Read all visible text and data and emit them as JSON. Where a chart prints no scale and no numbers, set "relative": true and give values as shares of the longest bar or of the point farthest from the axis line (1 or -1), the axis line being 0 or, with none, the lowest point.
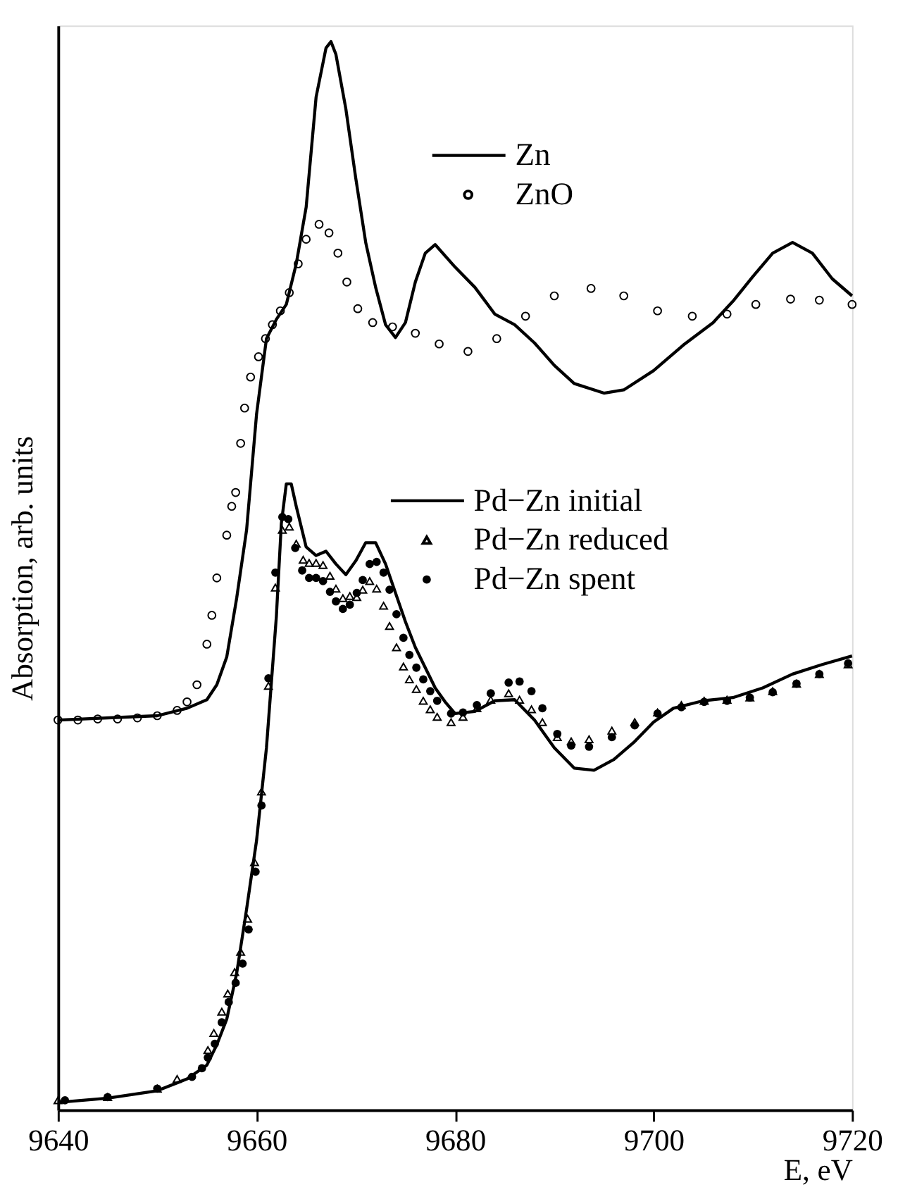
{
  "chart_data": {
    "type": "line",
    "xlabel": "E, eV",
    "ylabel": "Absorption, arb. units",
    "relative": true,
    "xlim": [
      9640,
      9720
    ],
    "xticks": [
      9640,
      9660,
      9680,
      9700,
      9720
    ],
    "grid": false,
    "legend": "top right",
    "series": [
      {
        "name": "Zn",
        "type": "line",
        "color": "#000000",
        "marker": "none",
        "x": [
          9640,
          9650,
          9653,
          9655,
          9656,
          9657,
          9658,
          9659,
          9660,
          9661,
          9662,
          9663,
          9664,
          9665,
          9666,
          9667,
          9667.5,
          9668,
          9669,
          9670,
          9671,
          9672,
          9673,
          9674,
          9675,
          9676,
          9677,
          9678,
          9680,
          9682,
          9684,
          9686,
          9688,
          9690,
          9692,
          9695,
          9697,
          9700,
          9703,
          9706,
          9708,
          9710,
          9712,
          9714,
          9716,
          9718,
          9720
        ],
        "values": [
          0.365,
          0.369,
          0.376,
          0.384,
          0.398,
          0.424,
          0.479,
          0.543,
          0.651,
          0.722,
          0.74,
          0.754,
          0.792,
          0.845,
          0.948,
          0.994,
          1.0,
          0.988,
          0.937,
          0.872,
          0.812,
          0.77,
          0.735,
          0.723,
          0.737,
          0.775,
          0.802,
          0.81,
          0.789,
          0.77,
          0.745,
          0.735,
          0.718,
          0.697,
          0.68,
          0.671,
          0.674,
          0.692,
          0.716,
          0.737,
          0.757,
          0.78,
          0.802,
          0.812,
          0.802,
          0.778,
          0.762
        ]
      },
      {
        "name": "ZnO",
        "type": "scatter",
        "color": "#000000",
        "marker": "circle",
        "x": [
          9640,
          9642,
          9644,
          9646,
          9648,
          9650,
          9652,
          9653,
          9654,
          9655,
          9655.5,
          9656,
          9657,
          9657.5,
          9657.9,
          9658.4,
          9658.8,
          9659.4,
          9660.2,
          9660.9,
          9661.6,
          9662.4,
          9663.3,
          9664.2,
          9665.0,
          9666.3,
          9667.3,
          9668.2,
          9669.1,
          9670.2,
          9671.7,
          9673.7,
          9676.0,
          9678.4,
          9681.3,
          9684.2,
          9687.1,
          9690.0,
          9693.7,
          9697.0,
          9700.4,
          9703.9,
          9707.4,
          9710.3,
          9713.8,
          9716.7,
          9720
        ],
        "values": [
          0.365,
          0.365,
          0.366,
          0.366,
          0.367,
          0.369,
          0.374,
          0.382,
          0.398,
          0.436,
          0.463,
          0.498,
          0.538,
          0.565,
          0.578,
          0.624,
          0.657,
          0.686,
          0.705,
          0.722,
          0.735,
          0.748,
          0.765,
          0.792,
          0.815,
          0.829,
          0.821,
          0.802,
          0.775,
          0.75,
          0.737,
          0.733,
          0.727,
          0.717,
          0.71,
          0.722,
          0.743,
          0.762,
          0.769,
          0.762,
          0.748,
          0.743,
          0.745,
          0.754,
          0.759,
          0.758,
          0.754
        ]
      },
      {
        "name": "Pd−Zn initial",
        "type": "line",
        "color": "#000000",
        "marker": "none",
        "x": [
          9640,
          9645,
          9650,
          9653,
          9655,
          9656,
          9657,
          9658,
          9659,
          9660,
          9661,
          9662,
          9662.5,
          9663,
          9663.5,
          9664,
          9665,
          9666,
          9667,
          9668,
          9669,
          9670,
          9671,
          9672,
          9673,
          9674,
          9675,
          9676,
          9677,
          9678,
          9679,
          9680,
          9682,
          9684,
          9686,
          9688,
          9690,
          9692,
          9694,
          9696,
          9698,
          9700,
          9702,
          9705,
          9708,
          9711,
          9714,
          9717,
          9720
        ],
        "values": [
          0.007,
          0.011,
          0.018,
          0.029,
          0.042,
          0.061,
          0.085,
          0.128,
          0.188,
          0.252,
          0.339,
          0.462,
          0.549,
          0.586,
          0.586,
          0.565,
          0.527,
          0.519,
          0.523,
          0.511,
          0.501,
          0.514,
          0.531,
          0.531,
          0.511,
          0.484,
          0.457,
          0.433,
          0.414,
          0.395,
          0.382,
          0.371,
          0.373,
          0.383,
          0.384,
          0.365,
          0.339,
          0.32,
          0.318,
          0.328,
          0.344,
          0.363,
          0.376,
          0.383,
          0.386,
          0.395,
          0.408,
          0.417,
          0.425
        ]
      },
      {
        "name": "Pd−Zn reduced",
        "type": "scatter",
        "color": "#000000",
        "marker": "triangle",
        "x": [
          9640,
          9645,
          9650,
          9652,
          9655.1,
          9655.7,
          9656.5,
          9657.1,
          9657.8,
          9658.4,
          9659.1,
          9659.8,
          9660.5,
          9661.2,
          9661.9,
          9662.6,
          9663.3,
          9664.0,
          9664.7,
          9665.3,
          9666.0,
          9666.7,
          9667.4,
          9668.0,
          9668.7,
          9669.4,
          9670.1,
          9670.7,
          9671.4,
          9672.1,
          9672.8,
          9673.4,
          9674.1,
          9674.8,
          9675.4,
          9676.1,
          9676.8,
          9677.5,
          9678.2,
          9679.6,
          9680.8,
          9682.2,
          9683.6,
          9685.4,
          9686.5,
          9687.7,
          9688.8,
          9690.3,
          9691.7,
          9693.5,
          9695.8,
          9698.1,
          9700.4,
          9702.8,
          9705.1,
          9707.4,
          9709.7,
          9712.0,
          9714.4,
          9716.7,
          9719.6
        ],
        "values": [
          0.009,
          0.012,
          0.02,
          0.029,
          0.056,
          0.072,
          0.092,
          0.109,
          0.129,
          0.148,
          0.179,
          0.232,
          0.298,
          0.397,
          0.489,
          0.543,
          0.546,
          0.53,
          0.515,
          0.512,
          0.512,
          0.51,
          0.5,
          0.488,
          0.479,
          0.481,
          0.48,
          0.487,
          0.495,
          0.488,
          0.472,
          0.453,
          0.433,
          0.415,
          0.403,
          0.394,
          0.383,
          0.375,
          0.368,
          0.363,
          0.368,
          0.376,
          0.384,
          0.39,
          0.384,
          0.375,
          0.363,
          0.349,
          0.345,
          0.347,
          0.355,
          0.363,
          0.372,
          0.379,
          0.383,
          0.384,
          0.386,
          0.392,
          0.399,
          0.408,
          0.417
        ]
      },
      {
        "name": "Pd−Zn spent",
        "type": "scatter",
        "color": "#000000",
        "marker": "circle",
        "x": [
          9640.7,
          9645,
          9650,
          9653.5,
          9654.5,
          9655.1,
          9655.8,
          9656.5,
          9657.2,
          9657.9,
          9658.6,
          9659.2,
          9659.9,
          9660.5,
          9661.2,
          9661.9,
          9662.6,
          9663.2,
          9663.9,
          9664.6,
          9665.3,
          9666.0,
          9666.7,
          9667.4,
          9668.0,
          9668.7,
          9669.4,
          9670.1,
          9670.7,
          9671.4,
          9672.1,
          9672.8,
          9673.4,
          9674.1,
          9674.8,
          9675.4,
          9676.1,
          9676.8,
          9677.5,
          9678.2,
          9679.6,
          9680.8,
          9682.2,
          9683.6,
          9685.4,
          9686.5,
          9687.7,
          9688.8,
          9690.3,
          9691.7,
          9693.5,
          9695.8,
          9698.1,
          9700.4,
          9702.8,
          9705.1,
          9707.4,
          9709.7,
          9712.0,
          9714.4,
          9716.7,
          9719.6
        ],
        "values": [
          0.009,
          0.012,
          0.02,
          0.031,
          0.039,
          0.049,
          0.062,
          0.082,
          0.101,
          0.119,
          0.137,
          0.169,
          0.223,
          0.285,
          0.404,
          0.503,
          0.555,
          0.553,
          0.526,
          0.505,
          0.498,
          0.498,
          0.495,
          0.485,
          0.476,
          0.469,
          0.473,
          0.484,
          0.496,
          0.511,
          0.513,
          0.503,
          0.487,
          0.464,
          0.442,
          0.426,
          0.414,
          0.403,
          0.392,
          0.383,
          0.371,
          0.372,
          0.379,
          0.39,
          0.4,
          0.401,
          0.392,
          0.376,
          0.352,
          0.341,
          0.34,
          0.349,
          0.36,
          0.371,
          0.377,
          0.382,
          0.383,
          0.386,
          0.391,
          0.399,
          0.408,
          0.418
        ]
      }
    ]
  }
}
